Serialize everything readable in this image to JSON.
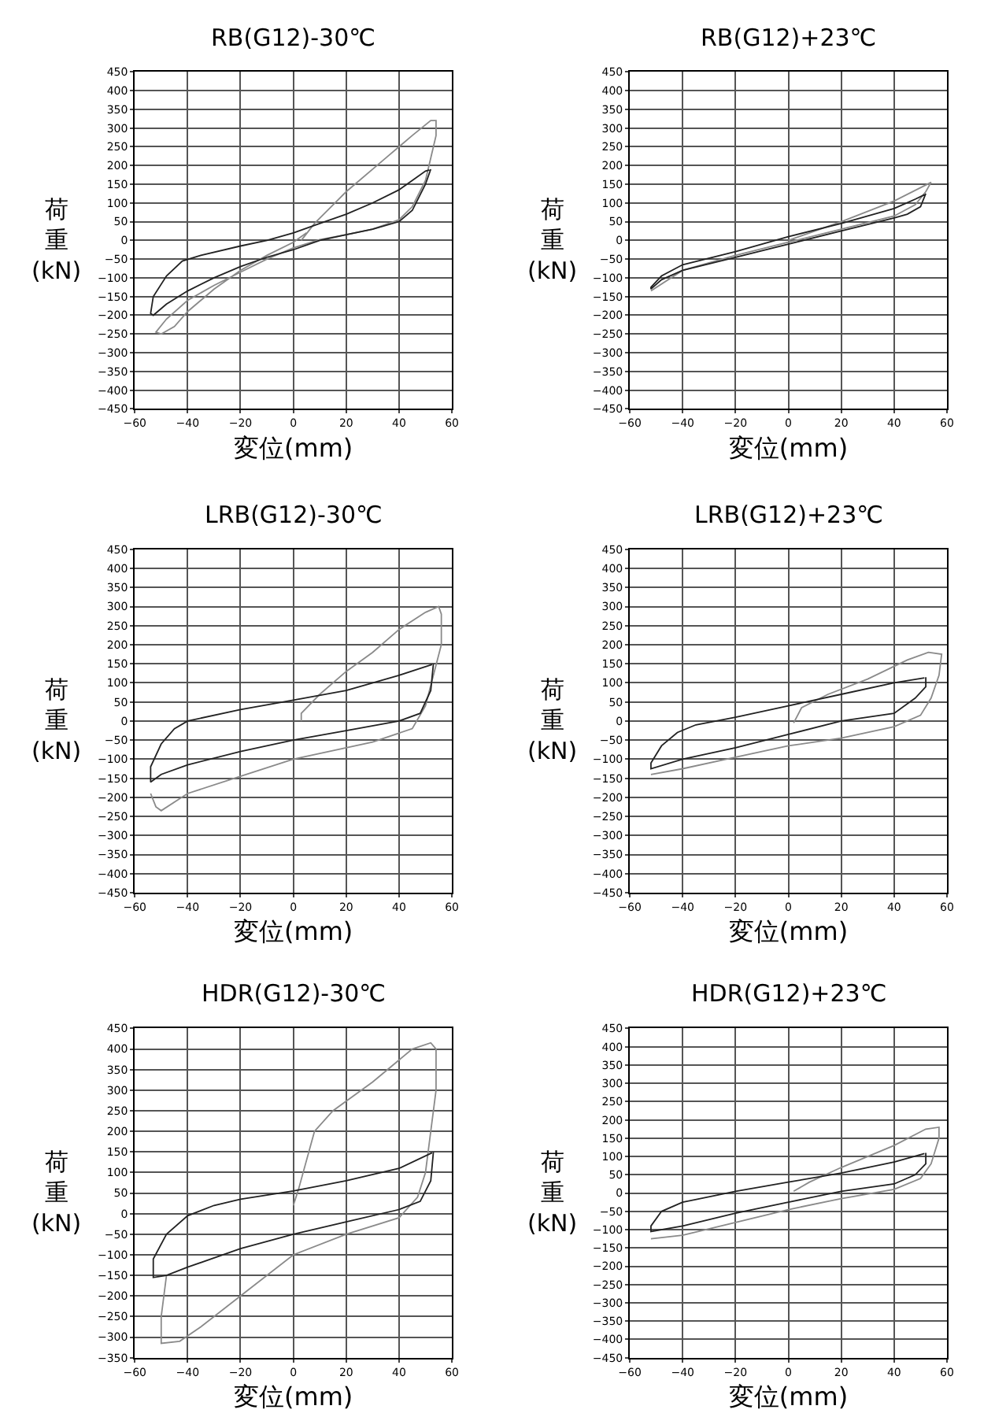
{
  "chart_data": [
    {
      "type": "line",
      "title": "RB(G12)-30℃",
      "xlabel": "変位(mm)",
      "ylabel": "荷重(kN)",
      "xlim": [
        -60,
        60
      ],
      "xticks": [
        -60,
        -40,
        -20,
        0,
        20,
        40,
        60
      ],
      "ylim": [
        -450,
        450
      ],
      "yticks": [
        -450,
        -400,
        -350,
        -300,
        -250,
        -200,
        -150,
        -100,
        -50,
        0,
        50,
        100,
        150,
        200,
        250,
        300,
        350,
        400,
        450
      ],
      "grid": true,
      "marker": "none",
      "line_style": "solid",
      "series": [
        {
          "color": "#8a8a8a",
          "x": [
            3,
            8,
            20,
            35,
            45,
            52,
            54,
            54,
            52,
            50,
            45,
            40,
            30,
            20,
            10,
            0,
            -10,
            -20,
            -30,
            -40,
            -48,
            -52,
            -50,
            -45,
            -40,
            -30,
            -20,
            -10,
            0,
            5
          ],
          "values": [
            0,
            45,
            130,
            220,
            280,
            320,
            320,
            280,
            220,
            160,
            90,
            55,
            30,
            15,
            2,
            -20,
            -50,
            -85,
            -120,
            -160,
            -210,
            -245,
            -250,
            -230,
            -190,
            -130,
            -80,
            -40,
            -5,
            20
          ]
        },
        {
          "color": "#222222",
          "x": [
            52,
            50,
            45,
            40,
            30,
            20,
            10,
            0,
            -10,
            -20,
            -30,
            -40,
            -48,
            -53,
            -54,
            -53,
            -48,
            -42,
            -35,
            -20,
            -10,
            0,
            10,
            20,
            30,
            40,
            45,
            50,
            51.5
          ],
          "values": [
            190,
            150,
            80,
            50,
            30,
            15,
            0,
            -25,
            -45,
            -70,
            -100,
            -135,
            -170,
            -200,
            -195,
            -150,
            -95,
            -55,
            -40,
            -15,
            0,
            20,
            45,
            70,
            100,
            135,
            160,
            185,
            188
          ]
        }
      ]
    },
    {
      "type": "line",
      "title": "RB(G12)+23℃",
      "xlabel": "変位(mm)",
      "ylabel": "荷重(kN)",
      "xlim": [
        -60,
        60
      ],
      "xticks": [
        -60,
        -40,
        -20,
        0,
        20,
        40,
        60
      ],
      "ylim": [
        -450,
        450
      ],
      "yticks": [
        -450,
        -400,
        -350,
        -300,
        -250,
        -200,
        -150,
        -100,
        -50,
        0,
        50,
        100,
        150,
        200,
        250,
        300,
        350,
        400,
        450
      ],
      "grid": true,
      "marker": "none",
      "line_style": "solid",
      "series": [
        {
          "color": "#8a8a8a",
          "x": [
            0,
            20,
            40,
            54,
            52,
            48,
            40,
            20,
            0,
            -20,
            -40,
            -52
          ],
          "values": [
            0,
            50,
            105,
            155,
            130,
            95,
            65,
            30,
            -5,
            -40,
            -80,
            -135
          ]
        },
        {
          "color": "#222222",
          "x": [
            52,
            50,
            45,
            40,
            20,
            0,
            -20,
            -40,
            -48,
            -52,
            -52,
            -48,
            -40,
            -20,
            0,
            20,
            40,
            48,
            51.5
          ],
          "values": [
            125,
            90,
            70,
            60,
            25,
            -10,
            -45,
            -80,
            -105,
            -130,
            -125,
            -95,
            -65,
            -30,
            10,
            45,
            85,
            110,
            122
          ]
        }
      ]
    },
    {
      "type": "line",
      "title": "LRB(G12)-30℃",
      "xlabel": "変位(mm)",
      "ylabel": "荷重(kN)",
      "xlim": [
        -60,
        60
      ],
      "xticks": [
        -60,
        -40,
        -20,
        0,
        20,
        40,
        60
      ],
      "ylim": [
        -450,
        450
      ],
      "yticks": [
        -450,
        -400,
        -350,
        -300,
        -250,
        -200,
        -150,
        -100,
        -50,
        0,
        50,
        100,
        150,
        200,
        250,
        300,
        350,
        400,
        450
      ],
      "grid": true,
      "marker": "none",
      "line_style": "solid",
      "series": [
        {
          "color": "#8a8a8a",
          "x": [
            3,
            3,
            10,
            20,
            30,
            40,
            50,
            55,
            56,
            56,
            53,
            50,
            45,
            30,
            10,
            0,
            -20,
            -40,
            -50,
            -52,
            -54
          ],
          "values": [
            0,
            20,
            70,
            130,
            180,
            240,
            285,
            300,
            280,
            200,
            120,
            40,
            -20,
            -55,
            -85,
            -100,
            -145,
            -190,
            -235,
            -225,
            -190
          ]
        },
        {
          "color": "#222222",
          "x": [
            53,
            52,
            48,
            40,
            20,
            0,
            -20,
            -40,
            -50,
            -54,
            -54,
            -50,
            -45,
            -40,
            -20,
            0,
            20,
            40,
            52.5
          ],
          "values": [
            150,
            80,
            20,
            0,
            -25,
            -50,
            -80,
            -115,
            -140,
            -160,
            -120,
            -60,
            -20,
            0,
            30,
            55,
            80,
            120,
            148
          ]
        }
      ]
    },
    {
      "type": "line",
      "title": "LRB(G12)+23℃",
      "xlabel": "変位(mm)",
      "ylabel": "荷重(kN)",
      "xlim": [
        -60,
        60
      ],
      "xticks": [
        -60,
        -40,
        -20,
        0,
        20,
        40,
        60
      ],
      "ylim": [
        -450,
        450
      ],
      "yticks": [
        -450,
        -400,
        -350,
        -300,
        -250,
        -200,
        -150,
        -100,
        -50,
        0,
        50,
        100,
        150,
        200,
        250,
        300,
        350,
        400,
        450
      ],
      "grid": true,
      "marker": "none",
      "line_style": "solid",
      "series": [
        {
          "color": "#8a8a8a",
          "x": [
            2,
            5,
            15,
            30,
            45,
            53,
            58,
            57,
            54,
            50,
            40,
            20,
            0,
            -20,
            -40,
            -52
          ],
          "values": [
            -5,
            35,
            70,
            110,
            160,
            180,
            175,
            120,
            60,
            15,
            -15,
            -45,
            -65,
            -95,
            -125,
            -140
          ]
        },
        {
          "color": "#222222",
          "x": [
            52,
            52,
            48,
            40,
            20,
            0,
            -20,
            -40,
            -52,
            -52,
            -48,
            -42,
            -35,
            -20,
            0,
            20,
            40,
            51.5
          ],
          "values": [
            115,
            90,
            60,
            20,
            0,
            -35,
            -70,
            -100,
            -125,
            -110,
            -65,
            -30,
            -10,
            10,
            40,
            70,
            100,
            113
          ]
        }
      ]
    },
    {
      "type": "line",
      "title": "HDR(G12)-30℃",
      "xlabel": "変位(mm)",
      "ylabel": "荷重(kN)",
      "xlim": [
        -60,
        60
      ],
      "xticks": [
        -60,
        -40,
        -20,
        0,
        20,
        40,
        60
      ],
      "ylim": [
        -350,
        450
      ],
      "yticks": [
        -350,
        -300,
        -250,
        -200,
        -150,
        -100,
        -50,
        0,
        50,
        100,
        150,
        200,
        250,
        300,
        350,
        400,
        450
      ],
      "grid": true,
      "marker": "none",
      "line_style": "solid",
      "series": [
        {
          "color": "#8a8a8a",
          "x": [
            0,
            2,
            8,
            15,
            30,
            45,
            52,
            54,
            54,
            52,
            50,
            47,
            40,
            20,
            0,
            -20,
            -35,
            -43,
            -50,
            -50,
            -48
          ],
          "values": [
            20,
            60,
            200,
            250,
            320,
            400,
            415,
            400,
            300,
            200,
            100,
            40,
            -10,
            -50,
            -100,
            -200,
            -275,
            -310,
            -315,
            -250,
            -150
          ]
        },
        {
          "color": "#222222",
          "x": [
            53,
            52,
            48,
            40,
            20,
            0,
            -20,
            -40,
            -48,
            -53,
            -53,
            -48,
            -40,
            -30,
            -20,
            0,
            20,
            40,
            52.5
          ],
          "values": [
            150,
            80,
            30,
            10,
            -20,
            -50,
            -85,
            -130,
            -150,
            -155,
            -110,
            -50,
            -5,
            20,
            35,
            55,
            80,
            110,
            148
          ]
        }
      ]
    },
    {
      "type": "line",
      "title": "HDR(G12)+23℃",
      "xlabel": "変位(mm)",
      "ylabel": "荷重(kN)",
      "xlim": [
        -60,
        60
      ],
      "xticks": [
        -60,
        -40,
        -20,
        0,
        20,
        40,
        60
      ],
      "ylim": [
        -450,
        450
      ],
      "yticks": [
        -450,
        -400,
        -350,
        -300,
        -250,
        -200,
        -150,
        -100,
        -50,
        0,
        50,
        100,
        150,
        200,
        250,
        300,
        350,
        400,
        450
      ],
      "grid": true,
      "marker": "none",
      "line_style": "solid",
      "series": [
        {
          "color": "#8a8a8a",
          "x": [
            2,
            8,
            20,
            40,
            52,
            57,
            57,
            54,
            50,
            40,
            20,
            0,
            -20,
            -40,
            -52
          ],
          "values": [
            5,
            30,
            70,
            130,
            175,
            180,
            150,
            80,
            40,
            10,
            -15,
            -45,
            -80,
            -115,
            -125
          ]
        },
        {
          "color": "#222222",
          "x": [
            52,
            52,
            48,
            40,
            20,
            0,
            -20,
            -40,
            -52,
            -52,
            -48,
            -40,
            -20,
            0,
            20,
            40,
            51.5
          ],
          "values": [
            110,
            80,
            50,
            25,
            5,
            -25,
            -55,
            -90,
            -105,
            -90,
            -50,
            -25,
            5,
            30,
            55,
            85,
            108
          ]
        }
      ]
    }
  ]
}
